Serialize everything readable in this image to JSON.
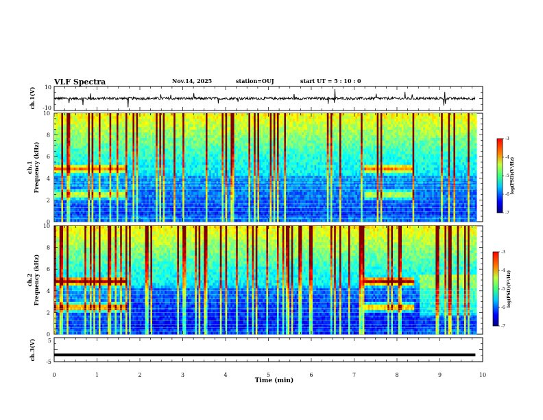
{
  "header": {
    "title": "VLF Spectra",
    "date": "Nov.14, 2025",
    "station": "station=OUJ",
    "start": "start  UT =   5  : 10 : 0"
  },
  "chart_data": [
    {
      "type": "line",
      "name": "ch1-waveform",
      "ylabel": "ch.1(V)",
      "ylim": [
        -10,
        10
      ],
      "ytick_labels": [
        "10",
        "-10"
      ],
      "x_range_min": [
        0,
        9.83
      ],
      "baseline": 0
    },
    {
      "type": "heatmap",
      "name": "ch1-spectrogram",
      "ylabel": "ch.1\nFrequency (kHz)",
      "ylabel_lines": [
        "ch.1",
        "Frequency (kHz)"
      ],
      "ylim": [
        0,
        10
      ],
      "ytick_labels": [
        "0",
        "2",
        "4",
        "6",
        "8",
        "10"
      ],
      "colorbar": {
        "label": "log(PSD)(V²/Hz)",
        "range": [
          -7,
          -3
        ],
        "tick_labels": [
          "-3",
          "-4",
          "-5",
          "-6",
          "-7"
        ]
      },
      "bands_kHz": [
        4.9,
        2.5
      ],
      "active_intervals_min": [
        [
          0,
          1.7
        ],
        [
          7.2,
          8.4
        ]
      ]
    },
    {
      "type": "heatmap",
      "name": "ch2-spectrogram",
      "ylabel": "ch.2\nFrequency (kHz)",
      "ylabel_lines": [
        "ch.2",
        "Frequency (kHz)"
      ],
      "ylim": [
        0,
        10
      ],
      "ytick_labels": [
        "0",
        "2",
        "4",
        "6",
        "8",
        "10"
      ],
      "colorbar": {
        "label": "log(PSD)(V²/Hz)",
        "range": [
          -7,
          -3
        ],
        "tick_labels": [
          "-3",
          "-4",
          "-5",
          "-6",
          "-7"
        ]
      },
      "bands_kHz": [
        4.9,
        2.5
      ],
      "active_intervals_min": [
        [
          0,
          1.7
        ],
        [
          7.2,
          8.4
        ]
      ]
    },
    {
      "type": "line",
      "name": "ch3-signal",
      "ylabel": "ch.3(V)",
      "ylim": [
        -5,
        5
      ],
      "ytick_labels": [
        "5",
        "-5"
      ],
      "constant_value": -2.2
    }
  ],
  "xaxis": {
    "label": "Time  (min)",
    "range": [
      0,
      10
    ],
    "tick_labels": [
      "0",
      "1",
      "2",
      "3",
      "4",
      "5",
      "6",
      "7",
      "8",
      "9",
      "10"
    ]
  },
  "colors": {
    "jet": [
      "#000080",
      "#0000ff",
      "#00ffff",
      "#80ff80",
      "#ffff00",
      "#ff8000",
      "#ff0000"
    ]
  }
}
